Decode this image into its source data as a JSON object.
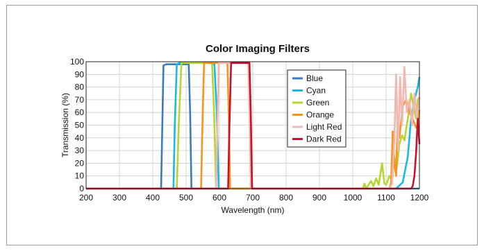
{
  "chart_data": {
    "type": "line",
    "title": "Color Imaging Filters",
    "xlabel": "Wavelength (nm)",
    "ylabel": "Transmission (%)",
    "xlim": [
      200,
      1200
    ],
    "ylim": [
      0,
      100
    ],
    "x_ticks": [
      "200",
      "300",
      "400",
      "500",
      "600",
      "700",
      "800",
      "900",
      "1000",
      "1100",
      "1200"
    ],
    "y_ticks": [
      "0",
      "10",
      "20",
      "30",
      "40",
      "50",
      "60",
      "70",
      "80",
      "90",
      "100"
    ],
    "grid": true,
    "legend_position": "top-right",
    "series": [
      {
        "name": "Blue",
        "color": "#3a7bbf",
        "points": [
          [
            200,
            0
          ],
          [
            425,
            0
          ],
          [
            428,
            40
          ],
          [
            432,
            97
          ],
          [
            440,
            98
          ],
          [
            500,
            98
          ],
          [
            508,
            98
          ],
          [
            512,
            60
          ],
          [
            516,
            0
          ],
          [
            1200,
            0
          ]
        ]
      },
      {
        "name": "Cyan",
        "color": "#1ab8e8",
        "points": [
          [
            200,
            0
          ],
          [
            462,
            0
          ],
          [
            466,
            50
          ],
          [
            472,
            98
          ],
          [
            480,
            99
          ],
          [
            570,
            99
          ],
          [
            585,
            98
          ],
          [
            592,
            60
          ],
          [
            598,
            0
          ],
          [
            1130,
            0
          ],
          [
            1150,
            5
          ],
          [
            1165,
            25
          ],
          [
            1175,
            55
          ],
          [
            1185,
            70
          ],
          [
            1195,
            80
          ],
          [
            1200,
            88
          ]
        ]
      },
      {
        "name": "Green",
        "color": "#b6d531",
        "points": [
          [
            200,
            0
          ],
          [
            472,
            0
          ],
          [
            478,
            50
          ],
          [
            486,
            99
          ],
          [
            500,
            99
          ],
          [
            570,
            99
          ],
          [
            578,
            99
          ],
          [
            584,
            60
          ],
          [
            590,
            0
          ],
          [
            1030,
            0
          ],
          [
            1035,
            4
          ],
          [
            1040,
            0
          ],
          [
            1055,
            6
          ],
          [
            1062,
            2
          ],
          [
            1070,
            8
          ],
          [
            1078,
            3
          ],
          [
            1088,
            20
          ],
          [
            1095,
            4
          ],
          [
            1100,
            3
          ],
          [
            1110,
            10
          ],
          [
            1118,
            6
          ],
          [
            1125,
            25
          ],
          [
            1130,
            12
          ],
          [
            1140,
            35
          ],
          [
            1148,
            42
          ],
          [
            1155,
            38
          ],
          [
            1162,
            50
          ],
          [
            1168,
            60
          ],
          [
            1175,
            75
          ],
          [
            1182,
            65
          ],
          [
            1190,
            55
          ],
          [
            1195,
            70
          ],
          [
            1200,
            72
          ]
        ]
      },
      {
        "name": "Orange",
        "color": "#f7941d",
        "points": [
          [
            200,
            0
          ],
          [
            545,
            0
          ],
          [
            549,
            50
          ],
          [
            554,
            99
          ],
          [
            565,
            99
          ],
          [
            618,
            99
          ],
          [
            624,
            99
          ],
          [
            628,
            60
          ],
          [
            632,
            0
          ],
          [
            1110,
            0
          ],
          [
            1115,
            5
          ],
          [
            1120,
            45
          ],
          [
            1125,
            20
          ],
          [
            1130,
            10
          ],
          [
            1135,
            55
          ],
          [
            1140,
            40
          ],
          [
            1150,
            65
          ],
          [
            1160,
            70
          ],
          [
            1170,
            60
          ],
          [
            1180,
            55
          ],
          [
            1190,
            48
          ],
          [
            1195,
            50
          ],
          [
            1200,
            62
          ]
        ]
      },
      {
        "name": "Light Red",
        "color": "#f2b8b0",
        "points": [
          [
            200,
            0
          ],
          [
            590,
            0
          ],
          [
            594,
            50
          ],
          [
            598,
            99
          ],
          [
            610,
            99
          ],
          [
            680,
            99
          ],
          [
            686,
            99
          ],
          [
            690,
            60
          ],
          [
            694,
            0
          ],
          [
            1110,
            0
          ],
          [
            1118,
            4
          ],
          [
            1125,
            40
          ],
          [
            1130,
            90
          ],
          [
            1136,
            30
          ],
          [
            1142,
            88
          ],
          [
            1148,
            50
          ],
          [
            1155,
            96
          ],
          [
            1162,
            60
          ],
          [
            1170,
            70
          ],
          [
            1178,
            50
          ],
          [
            1185,
            75
          ],
          [
            1192,
            55
          ],
          [
            1200,
            72
          ]
        ]
      },
      {
        "name": "Dark Red",
        "color": "#c8102e",
        "points": [
          [
            200,
            0
          ],
          [
            626,
            0
          ],
          [
            630,
            50
          ],
          [
            635,
            99
          ],
          [
            650,
            99
          ],
          [
            690,
            99
          ],
          [
            694,
            60
          ],
          [
            698,
            0
          ],
          [
            1175,
            0
          ],
          [
            1180,
            2
          ],
          [
            1185,
            10
          ],
          [
            1190,
            28
          ],
          [
            1195,
            55
          ],
          [
            1200,
            35
          ]
        ]
      }
    ]
  }
}
